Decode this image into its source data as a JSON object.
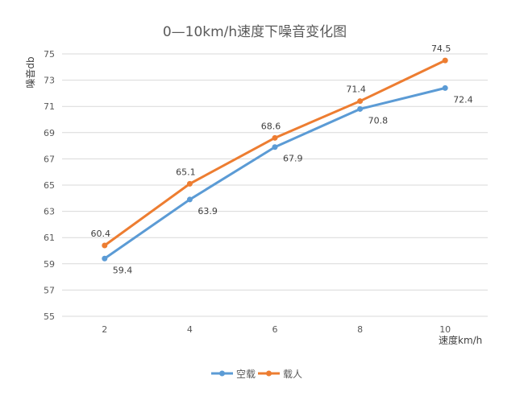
{
  "chart_data": {
    "type": "line",
    "title": "0—10km/h速度下噪音变化图",
    "xlabel": "速度km/h",
    "ylabel": "噪音db",
    "categories": [
      "2",
      "4",
      "6",
      "8",
      "10"
    ],
    "ylim": [
      55,
      75
    ],
    "yticks": [
      55,
      57,
      59,
      61,
      63,
      65,
      67,
      69,
      71,
      73,
      75
    ],
    "grid": true,
    "legend": "bottom",
    "series": [
      {
        "name": "空载",
        "color": "#5b9bd5",
        "values": [
          59.4,
          63.9,
          67.9,
          70.8,
          72.4
        ]
      },
      {
        "name": "载人",
        "color": "#ed7d31",
        "values": [
          60.4,
          65.1,
          68.6,
          71.4,
          74.5
        ]
      }
    ]
  }
}
